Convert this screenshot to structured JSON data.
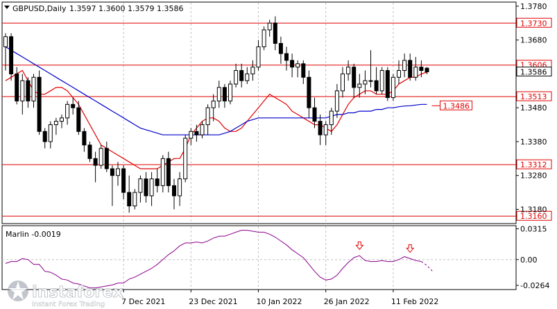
{
  "header": {
    "symbol": "GBPUSD,Daily",
    "ohlc": "1.3597 1.3600 1.3579 1.3586"
  },
  "indicator": {
    "label": "Marlin -0.0019"
  },
  "watermark": {
    "brand": "instaforex",
    "tagline": "Instant Forex Trading"
  },
  "colors": {
    "up_candle": "#ffffff",
    "down_candle": "#000000",
    "ma_fast": "#e00000",
    "ma_slow": "#0000cc",
    "levels": "#e00000",
    "oscillator": "#8b008b",
    "arrows": "#e00000",
    "grid": "#c0c0c0"
  },
  "chart_data": [
    {
      "type": "candlestick",
      "title": "GBPUSD,Daily",
      "ylim": [
        1.314,
        1.379
      ],
      "y_ticks": [
        "1.3780",
        "1.3680",
        "1.3586",
        "1.3480",
        "1.3380",
        "1.3280",
        "1.3180"
      ],
      "current_price": "1.3586",
      "x_tick_labels": [
        "7 Dec 2021",
        "23 Dec 2021",
        "10 Jan 2022",
        "26 Jan 2022",
        "11 Feb 2022"
      ],
      "x_tick_bars": [
        21,
        33,
        45,
        57,
        69
      ],
      "levels": [
        {
          "label": "1.3730",
          "value": 1.373
        },
        {
          "label": "1.3606",
          "value": 1.3606
        },
        {
          "label": "1.3513",
          "value": 1.3513
        },
        {
          "label": "1.3312",
          "value": 1.3312
        },
        {
          "label": "1.3160",
          "value": 1.316
        }
      ],
      "target": {
        "label": "1.3486",
        "value": 1.3486
      },
      "grid": true,
      "ohlc": [
        [
          1.366,
          1.37,
          1.359,
          1.369
        ],
        [
          1.369,
          1.37,
          1.356,
          1.358
        ],
        [
          1.358,
          1.36,
          1.349,
          1.35
        ],
        [
          1.35,
          1.358,
          1.346,
          1.356
        ],
        [
          1.356,
          1.357,
          1.348,
          1.35
        ],
        [
          1.35,
          1.358,
          1.348,
          1.357
        ],
        [
          1.357,
          1.359,
          1.34,
          1.341
        ],
        [
          1.341,
          1.342,
          1.336,
          1.338
        ],
        [
          1.338,
          1.344,
          1.336,
          1.343
        ],
        [
          1.343,
          1.345,
          1.34,
          1.344
        ],
        [
          1.344,
          1.346,
          1.342,
          1.345
        ],
        [
          1.345,
          1.35,
          1.343,
          1.349
        ],
        [
          1.349,
          1.351,
          1.346,
          1.348
        ],
        [
          1.348,
          1.35,
          1.34,
          1.341
        ],
        [
          1.341,
          1.342,
          1.335,
          1.337
        ],
        [
          1.337,
          1.338,
          1.332,
          1.333
        ],
        [
          1.333,
          1.335,
          1.326,
          1.331
        ],
        [
          1.331,
          1.337,
          1.33,
          1.336
        ],
        [
          1.336,
          1.338,
          1.329,
          1.33
        ],
        [
          1.33,
          1.331,
          1.319,
          1.328
        ],
        [
          1.328,
          1.332,
          1.325,
          1.33
        ],
        [
          1.33,
          1.331,
          1.321,
          1.323
        ],
        [
          1.323,
          1.328,
          1.317,
          1.319
        ],
        [
          1.319,
          1.324,
          1.318,
          1.323
        ],
        [
          1.323,
          1.328,
          1.32,
          1.327
        ],
        [
          1.327,
          1.329,
          1.32,
          1.322
        ],
        [
          1.322,
          1.329,
          1.319,
          1.327
        ],
        [
          1.327,
          1.33,
          1.323,
          1.325
        ],
        [
          1.325,
          1.334,
          1.323,
          1.333
        ],
        [
          1.333,
          1.335,
          1.323,
          1.325
        ],
        [
          1.325,
          1.327,
          1.318,
          1.322
        ],
        [
          1.322,
          1.329,
          1.319,
          1.327
        ],
        [
          1.327,
          1.34,
          1.326,
          1.339
        ],
        [
          1.339,
          1.342,
          1.337,
          1.341
        ],
        [
          1.341,
          1.343,
          1.338,
          1.34
        ],
        [
          1.34,
          1.344,
          1.339,
          1.343
        ],
        [
          1.343,
          1.349,
          1.34,
          1.348
        ],
        [
          1.348,
          1.352,
          1.344,
          1.35
        ],
        [
          1.35,
          1.356,
          1.348,
          1.354
        ],
        [
          1.354,
          1.355,
          1.348,
          1.35
        ],
        [
          1.35,
          1.356,
          1.349,
          1.355
        ],
        [
          1.355,
          1.361,
          1.354,
          1.359
        ],
        [
          1.359,
          1.361,
          1.354,
          1.356
        ],
        [
          1.356,
          1.36,
          1.355,
          1.358
        ],
        [
          1.358,
          1.362,
          1.356,
          1.36
        ],
        [
          1.36,
          1.368,
          1.359,
          1.366
        ],
        [
          1.366,
          1.372,
          1.365,
          1.371
        ],
        [
          1.371,
          1.374,
          1.369,
          1.373
        ],
        [
          1.373,
          1.375,
          1.365,
          1.367
        ],
        [
          1.367,
          1.369,
          1.361,
          1.364
        ],
        [
          1.364,
          1.366,
          1.359,
          1.362
        ],
        [
          1.362,
          1.364,
          1.357,
          1.36
        ],
        [
          1.36,
          1.362,
          1.357,
          1.361
        ],
        [
          1.361,
          1.362,
          1.355,
          1.357
        ],
        [
          1.357,
          1.359,
          1.345,
          1.348
        ],
        [
          1.348,
          1.351,
          1.342,
          1.344
        ],
        [
          1.344,
          1.346,
          1.337,
          1.34
        ],
        [
          1.34,
          1.344,
          1.337,
          1.343
        ],
        [
          1.343,
          1.348,
          1.34,
          1.347
        ],
        [
          1.347,
          1.355,
          1.345,
          1.353
        ],
        [
          1.353,
          1.36,
          1.351,
          1.358
        ],
        [
          1.358,
          1.362,
          1.356,
          1.36
        ],
        [
          1.36,
          1.361,
          1.351,
          1.354
        ],
        [
          1.354,
          1.358,
          1.351,
          1.355
        ],
        [
          1.355,
          1.359,
          1.352,
          1.356
        ],
        [
          1.356,
          1.365,
          1.354,
          1.356
        ],
        [
          1.356,
          1.36,
          1.352,
          1.353
        ],
        [
          1.353,
          1.36,
          1.352,
          1.359
        ],
        [
          1.359,
          1.36,
          1.35,
          1.351
        ],
        [
          1.351,
          1.358,
          1.35,
          1.357
        ],
        [
          1.357,
          1.362,
          1.355,
          1.359
        ],
        [
          1.359,
          1.364,
          1.357,
          1.362
        ],
        [
          1.362,
          1.364,
          1.356,
          1.357
        ],
        [
          1.357,
          1.363,
          1.356,
          1.36
        ],
        [
          1.36,
          1.362,
          1.357,
          1.359
        ],
        [
          1.3597,
          1.36,
          1.3579,
          1.3586
        ]
      ],
      "series": [
        {
          "values": [
            1.356,
            1.357,
            1.358,
            1.359,
            1.356,
            1.353,
            1.352,
            1.352,
            1.353,
            1.354,
            1.354,
            1.353,
            1.351,
            1.349,
            1.346,
            1.343,
            1.34,
            1.337,
            1.336,
            1.335,
            1.334,
            1.333,
            1.332,
            1.331,
            1.33,
            1.33,
            1.33,
            1.33,
            1.331,
            1.332,
            1.333,
            1.333,
            1.336,
            1.34,
            1.342,
            1.344,
            1.345,
            1.345,
            1.344,
            1.342,
            1.341,
            1.341,
            1.342,
            1.344,
            1.346,
            1.348,
            1.35,
            1.352,
            1.351,
            1.35,
            1.349,
            1.347,
            1.346,
            1.345,
            1.344,
            1.343,
            1.343,
            1.342,
            1.341,
            1.343,
            1.346,
            1.349,
            1.351,
            1.352,
            1.353,
            1.353,
            1.352,
            1.352,
            1.352,
            1.353,
            1.355,
            1.356,
            1.357,
            1.357,
            1.358,
            1.3585
          ]
        },
        {
          "values": [
            1.366,
            1.365,
            1.364,
            1.363,
            1.362,
            1.361,
            1.36,
            1.359,
            1.358,
            1.357,
            1.356,
            1.355,
            1.354,
            1.353,
            1.352,
            1.351,
            1.35,
            1.349,
            1.348,
            1.347,
            1.346,
            1.345,
            1.344,
            1.343,
            1.342,
            1.3415,
            1.341,
            1.3405,
            1.34,
            1.34,
            1.34,
            1.34,
            1.34,
            1.34,
            1.34,
            1.34,
            1.34,
            1.34,
            1.34,
            1.3405,
            1.341,
            1.342,
            1.343,
            1.344,
            1.3445,
            1.345,
            1.345,
            1.345,
            1.345,
            1.345,
            1.345,
            1.345,
            1.345,
            1.345,
            1.345,
            1.345,
            1.345,
            1.345,
            1.3455,
            1.346,
            1.346,
            1.3465,
            1.3465,
            1.347,
            1.347,
            1.347,
            1.3475,
            1.3475,
            1.348,
            1.348,
            1.3483,
            1.3485,
            1.3486,
            1.3488,
            1.349,
            1.349
          ]
        }
      ]
    },
    {
      "type": "line",
      "title": "Marlin -0.0019",
      "ylim": [
        -0.03,
        0.034
      ],
      "y_ticks": [
        "0.0315",
        "0.00",
        "-0.0264"
      ],
      "grid": true,
      "series": [
        {
          "values": [
            -0.004,
            -0.002,
            -0.002,
            0.001,
            0.0,
            -0.005,
            -0.005,
            -0.012,
            -0.013,
            -0.016,
            -0.02,
            -0.021,
            -0.024,
            -0.025,
            -0.027,
            -0.029,
            -0.029,
            -0.028,
            -0.027,
            -0.026,
            -0.024,
            -0.024,
            -0.02,
            -0.018,
            -0.015,
            -0.012,
            -0.009,
            -0.005,
            0.0,
            0.005,
            0.009,
            0.014,
            0.017,
            0.017,
            0.018,
            0.017,
            0.019,
            0.022,
            0.024,
            0.024,
            0.026,
            0.028,
            0.03,
            0.03,
            0.029,
            0.028,
            0.028,
            0.026,
            0.023,
            0.019,
            0.015,
            0.01,
            0.006,
            0.002,
            -0.005,
            -0.012,
            -0.018,
            -0.021,
            -0.02,
            -0.016,
            -0.009,
            -0.003,
            0.002,
            0.004,
            -0.001,
            -0.002,
            -0.002,
            -0.001,
            -0.002,
            -0.002,
            0.0,
            0.003,
            0.001,
            -0.001,
            -0.002,
            -0.006,
            -0.012
          ]
        }
      ],
      "markers": [
        {
          "type": "down-arrow",
          "bar": 63
        },
        {
          "type": "down-arrow",
          "bar": 72
        }
      ],
      "dashed_from_bar": 74
    }
  ]
}
